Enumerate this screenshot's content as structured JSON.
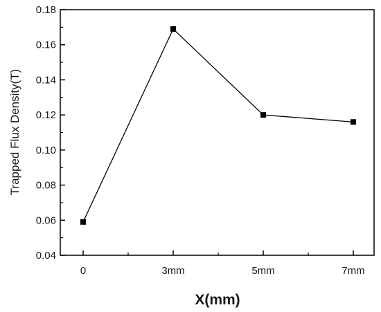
{
  "chart_data": {
    "type": "line",
    "categories": [
      "0",
      "3mm",
      "5mm",
      "7mm"
    ],
    "series": [
      {
        "values": [
          0.059,
          0.169,
          0.12,
          0.116
        ]
      }
    ],
    "xlabel": "X(mm)",
    "ylabel": "Trapped Flux Density(T)",
    "ylim": [
      0.04,
      0.18
    ],
    "yticks": [
      "0.04",
      "0.06",
      "0.08",
      "0.10",
      "0.12",
      "0.14",
      "0.16",
      "0.18"
    ],
    "grid": false,
    "marker": "square",
    "colors": {
      "line": "#000000",
      "axes": "#000000"
    }
  }
}
